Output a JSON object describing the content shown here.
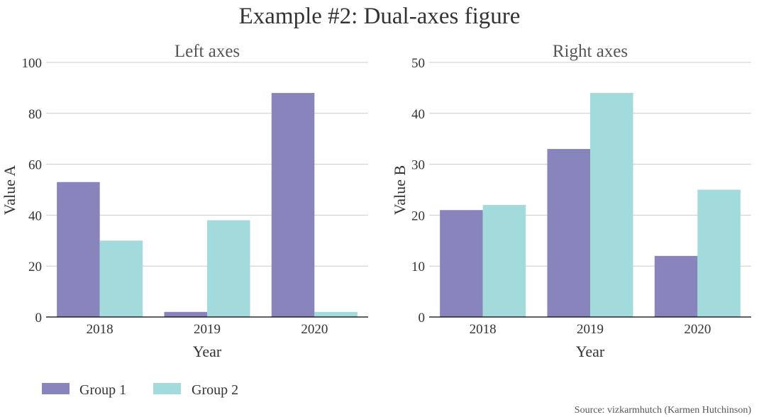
{
  "title": "Example #2: Dual-axes figure",
  "source": "Source: vizkarmhutch (Karmen Hutchinson)",
  "colors": {
    "group1": "#8884bc",
    "group2": "#a3dadb",
    "grid": "#cccccc",
    "axis": "#000000"
  },
  "legend": {
    "placement": "bottom-left",
    "entries": [
      {
        "label": "Group 1",
        "color": "#8884bc"
      },
      {
        "label": "Group 2",
        "color": "#a3dadb"
      }
    ]
  },
  "chart_data": [
    {
      "type": "bar",
      "title": "Left axes",
      "xlabel": "Year",
      "ylabel": "Value A",
      "categories": [
        "2018",
        "2019",
        "2020"
      ],
      "ylim": [
        0,
        100
      ],
      "yticks": [
        0,
        20,
        40,
        60,
        80,
        100
      ],
      "grid": true,
      "series": [
        {
          "name": "Group 1",
          "values": [
            53,
            2,
            88
          ]
        },
        {
          "name": "Group 2",
          "values": [
            30,
            38,
            2
          ]
        }
      ]
    },
    {
      "type": "bar",
      "title": "Right axes",
      "xlabel": "Year",
      "ylabel": "Value B",
      "categories": [
        "2018",
        "2019",
        "2020"
      ],
      "ylim": [
        0,
        50
      ],
      "yticks": [
        0,
        10,
        20,
        30,
        40,
        50
      ],
      "grid": true,
      "series": [
        {
          "name": "Group 1",
          "values": [
            21,
            33,
            12
          ]
        },
        {
          "name": "Group 2",
          "values": [
            22,
            44,
            25
          ]
        }
      ]
    }
  ]
}
